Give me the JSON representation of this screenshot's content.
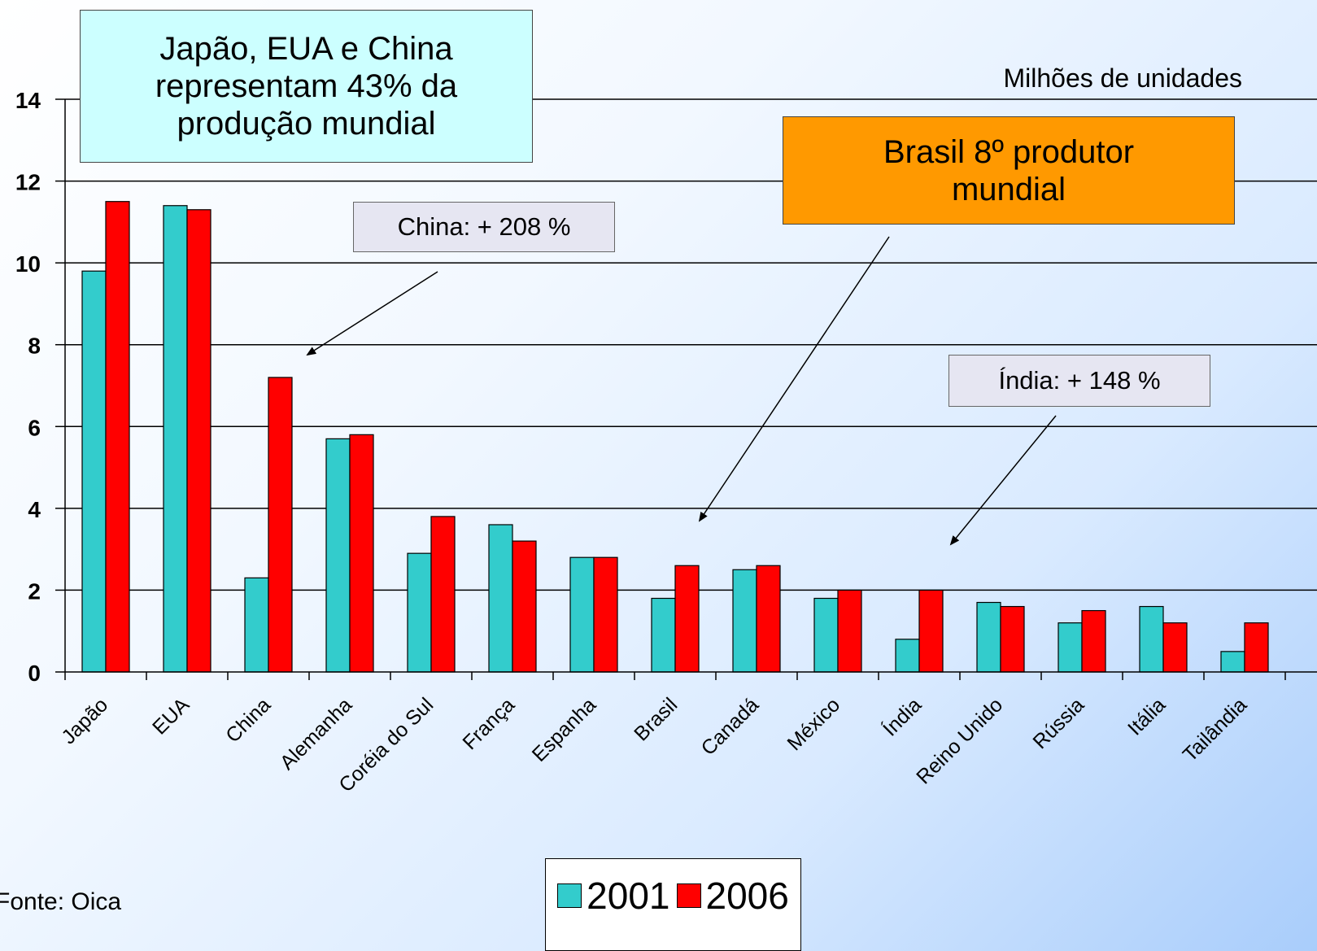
{
  "chart_data": {
    "type": "bar",
    "categories": [
      "Japão",
      "EUA",
      "China",
      "Alemanha",
      "Coréia do Sul",
      "França",
      "Espanha",
      "Brasil",
      "Canadá",
      "México",
      "Índia",
      "Reino Unido",
      "Rússia",
      "Itália",
      "Tailândia"
    ],
    "series": [
      {
        "name": "2001",
        "color": "#33cccc",
        "values": [
          9.8,
          11.4,
          2.3,
          5.7,
          2.9,
          3.6,
          2.8,
          1.8,
          2.5,
          1.8,
          0.8,
          1.7,
          1.2,
          1.6,
          0.5
        ]
      },
      {
        "name": "2006",
        "color": "#ff0000",
        "values": [
          11.5,
          11.3,
          7.2,
          5.8,
          3.8,
          3.2,
          2.8,
          2.6,
          2.6,
          2.0,
          2.0,
          1.6,
          1.5,
          1.2,
          1.2
        ]
      }
    ],
    "ylabel": "Milhões de unidades",
    "ylim": [
      0,
      14
    ],
    "yticks": [
      0,
      2,
      4,
      6,
      8,
      10,
      12,
      14
    ],
    "grid": true,
    "legend_position": "bottom-center"
  },
  "annotations": {
    "main_note": [
      "Japão, EUA e China",
      "representam 43% da",
      "produção mundial"
    ],
    "brasil_note": [
      "Brasil 8º produtor",
      "mundial"
    ],
    "china_note": "China: + 208 %",
    "india_note": "Índia: + 148 %"
  },
  "source": "Fonte: Oica"
}
